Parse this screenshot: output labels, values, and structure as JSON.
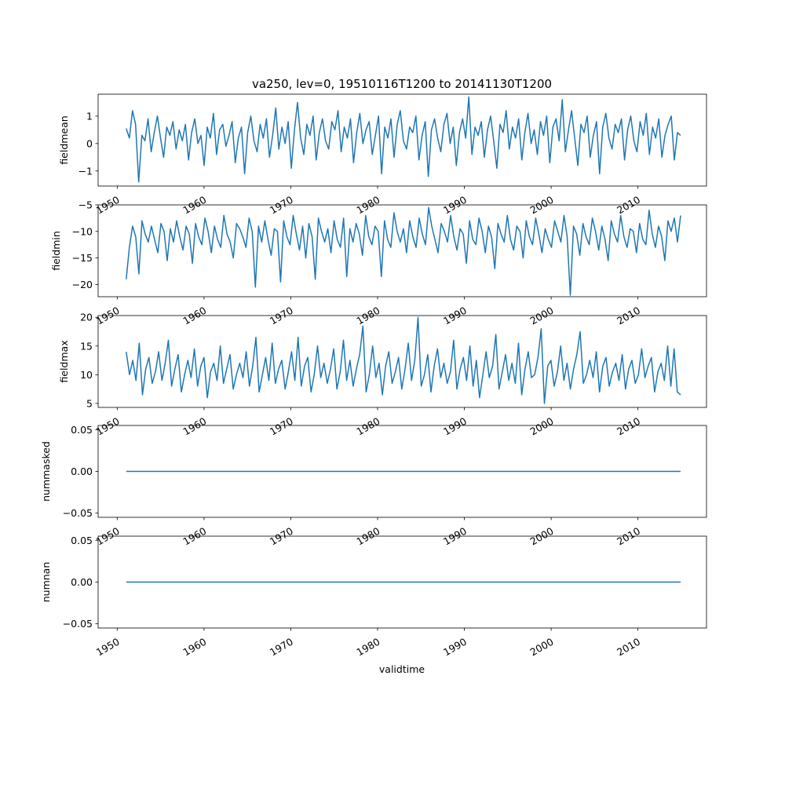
{
  "figure": {
    "title": "va250, lev=0, 19510116T1200 to 20141130T1200",
    "xlabel": "validtime"
  },
  "colors": {
    "line": "#1f77b4",
    "axes": "#000000",
    "background": "#ffffff"
  },
  "chart_data": [
    {
      "type": "line",
      "ylabel": "fieldmean",
      "x_range": [
        "1951-01-16",
        "2014-11-30"
      ],
      "xlim": [
        1947.8,
        2017.9
      ],
      "ylim": [
        -1.55,
        1.8
      ],
      "yticks": [
        -1,
        0,
        1
      ],
      "ytick_labels": [
        "−1",
        "0",
        "1"
      ],
      "xticks": [
        1950,
        1960,
        1970,
        1980,
        1990,
        2000,
        2010
      ],
      "xtick_labels": [
        "1950",
        "1960",
        "1970",
        "1980",
        "1990",
        "2000",
        "2010"
      ],
      "x_step_years": 0.08333333,
      "values": [
        0.55,
        0.2,
        1.2,
        0.7,
        -1.4,
        0.3,
        0.1,
        0.9,
        -0.3,
        0.4,
        1.0,
        0.2,
        -0.5,
        0.6,
        0.3,
        0.8,
        -0.2,
        0.5,
        0.1,
        0.7,
        -0.6,
        0.4,
        0.9,
        0.0,
        0.3,
        -0.8,
        0.6,
        0.2,
        1.1,
        -0.4,
        0.5,
        0.7,
        -0.1,
        0.3,
        0.8,
        -0.7,
        0.2,
        0.6,
        -1.1,
        0.4,
        1.0,
        0.1,
        -0.3,
        0.7,
        0.2,
        0.9,
        -0.5,
        0.3,
        1.3,
        -0.2,
        0.6,
        0.0,
        0.8,
        -0.9,
        0.5,
        1.5,
        0.2,
        -0.4,
        0.7,
        0.3,
        1.0,
        -0.6,
        0.4,
        0.9,
        0.1,
        -0.2,
        0.8,
        0.5,
        1.2,
        -0.3,
        0.6,
        0.2,
        0.9,
        -0.7,
        0.4,
        1.1,
        0.0,
        0.5,
        0.8,
        -0.4,
        0.3,
        1.0,
        -1.1,
        0.6,
        0.2,
        0.9,
        -0.5,
        0.7,
        1.2,
        0.1,
        -0.2,
        0.6,
        0.4,
        1.0,
        -0.6,
        0.3,
        0.8,
        -1.2,
        0.5,
        0.9,
        0.2,
        -0.3,
        0.7,
        1.1,
        0.0,
        0.6,
        -0.8,
        0.4,
        0.9,
        0.2,
        1.7,
        -0.4,
        0.6,
        0.3,
        0.8,
        -0.5,
        0.5,
        1.0,
        0.1,
        -0.9,
        0.7,
        0.4,
        1.2,
        -0.2,
        0.6,
        0.2,
        0.9,
        -0.6,
        0.4,
        1.1,
        0.0,
        0.5,
        -0.4,
        0.8,
        0.3,
        1.0,
        -0.7,
        0.6,
        0.9,
        0.1,
        1.6,
        -0.3,
        0.5,
        1.2,
        0.2,
        -0.8,
        0.7,
        0.4,
        1.0,
        -0.5,
        0.3,
        0.8,
        -1.1,
        0.6,
        1.1,
        0.2,
        -0.2,
        0.7,
        0.4,
        0.9,
        -0.6,
        0.5,
        1.0,
        0.1,
        -0.3,
        0.8,
        0.3,
        1.1,
        -0.4,
        0.6,
        0.2,
        0.9,
        -0.5,
        0.3,
        0.7,
        1.0,
        -0.6,
        0.4,
        0.3
      ]
    },
    {
      "type": "line",
      "ylabel": "fieldmin",
      "x_range": [
        "1951-01-16",
        "2014-11-30"
      ],
      "xlim": [
        1947.8,
        2017.9
      ],
      "ylim": [
        -22.3,
        -5.0
      ],
      "yticks": [
        -20,
        -15,
        -10,
        -5
      ],
      "ytick_labels": [
        "−20",
        "−15",
        "−10",
        "−5"
      ],
      "xticks": [
        1950,
        1960,
        1970,
        1980,
        1990,
        2000,
        2010
      ],
      "xtick_labels": [
        "1950",
        "1960",
        "1970",
        "1980",
        "1990",
        "2000",
        "2010"
      ],
      "x_step_years": 0.08333333,
      "values": [
        -19.0,
        -13.0,
        -9.0,
        -11.0,
        -18.0,
        -8.0,
        -10.5,
        -12.0,
        -9.0,
        -11.5,
        -14.0,
        -8.5,
        -10.0,
        -15.5,
        -9.5,
        -12.0,
        -8.0,
        -11.0,
        -13.5,
        -9.0,
        -10.5,
        -16.0,
        -8.5,
        -11.0,
        -12.5,
        -7.5,
        -10.0,
        -14.0,
        -9.0,
        -11.5,
        -13.0,
        -7.0,
        -10.5,
        -12.0,
        -15.0,
        -8.5,
        -9.5,
        -11.0,
        -13.0,
        -7.5,
        -10.0,
        -20.5,
        -9.0,
        -12.0,
        -8.0,
        -11.5,
        -14.5,
        -9.5,
        -10.0,
        -19.5,
        -8.0,
        -11.0,
        -12.5,
        -7.0,
        -10.5,
        -13.5,
        -9.0,
        -15.0,
        -8.5,
        -11.0,
        -19.0,
        -7.5,
        -10.0,
        -12.0,
        -9.5,
        -14.0,
        -8.0,
        -11.5,
        -13.0,
        -7.5,
        -18.5,
        -9.5,
        -12.0,
        -8.5,
        -10.5,
        -14.5,
        -7.0,
        -11.0,
        -12.5,
        -9.0,
        -10.0,
        -18.5,
        -8.0,
        -11.5,
        -13.0,
        -6.5,
        -10.0,
        -12.0,
        -9.5,
        -14.0,
        -8.0,
        -11.0,
        -13.0,
        -7.5,
        -10.5,
        -12.5,
        -5.5,
        -9.0,
        -11.5,
        -14.0,
        -8.5,
        -10.0,
        -12.0,
        -7.0,
        -11.0,
        -13.5,
        -9.5,
        -10.5,
        -16.0,
        -8.0,
        -11.5,
        -12.5,
        -7.5,
        -10.0,
        -14.0,
        -9.0,
        -11.0,
        -17.0,
        -8.5,
        -10.5,
        -12.0,
        -7.0,
        -11.5,
        -13.5,
        -9.0,
        -10.0,
        -15.0,
        -8.0,
        -11.0,
        -12.5,
        -7.5,
        -10.5,
        -14.0,
        -9.5,
        -11.5,
        -13.0,
        -8.0,
        -10.0,
        -12.0,
        -7.0,
        -11.0,
        -22.0,
        -9.0,
        -10.5,
        -14.5,
        -8.5,
        -11.0,
        -12.5,
        -7.5,
        -10.0,
        -13.5,
        -9.0,
        -11.5,
        -15.5,
        -8.0,
        -10.5,
        -12.0,
        -7.0,
        -11.0,
        -13.0,
        -9.5,
        -10.0,
        -14.0,
        -8.5,
        -11.5,
        -12.5,
        -6.0,
        -10.5,
        -13.0,
        -9.0,
        -11.0,
        -15.5,
        -8.0,
        -10.0,
        -7.5,
        -12.0,
        -7.0
      ]
    },
    {
      "type": "line",
      "ylabel": "fieldmax",
      "x_range": [
        "1951-01-16",
        "2014-11-30"
      ],
      "xlim": [
        1947.8,
        2017.9
      ],
      "ylim": [
        4.3,
        20.3
      ],
      "yticks": [
        5,
        10,
        15,
        20
      ],
      "ytick_labels": [
        "5",
        "10",
        "15",
        "20"
      ],
      "xticks": [
        1950,
        1960,
        1970,
        1980,
        1990,
        2000,
        2010
      ],
      "xtick_labels": [
        "1950",
        "1960",
        "1970",
        "1980",
        "1990",
        "2000",
        "2010"
      ],
      "x_step_years": 0.08333333,
      "values": [
        14.0,
        10.0,
        12.5,
        9.0,
        15.5,
        6.5,
        11.0,
        13.0,
        8.5,
        10.5,
        14.0,
        9.0,
        12.0,
        16.0,
        8.0,
        11.0,
        13.5,
        7.0,
        10.0,
        12.5,
        9.5,
        14.5,
        8.0,
        11.5,
        13.0,
        6.0,
        10.5,
        12.0,
        9.0,
        15.0,
        8.5,
        11.0,
        13.5,
        7.5,
        10.0,
        12.0,
        9.5,
        14.0,
        8.0,
        11.5,
        16.5,
        7.0,
        10.0,
        13.0,
        9.0,
        15.5,
        8.5,
        11.0,
        12.5,
        7.5,
        10.5,
        14.0,
        9.0,
        16.5,
        8.0,
        11.5,
        13.0,
        7.0,
        10.0,
        15.0,
        9.5,
        12.0,
        8.5,
        11.0,
        14.5,
        7.5,
        10.5,
        16.0,
        9.0,
        12.5,
        8.0,
        11.0,
        13.5,
        18.5,
        7.0,
        10.0,
        15.0,
        9.5,
        12.0,
        6.5,
        11.5,
        14.0,
        8.5,
        10.5,
        13.0,
        7.5,
        11.0,
        15.5,
        9.0,
        12.5,
        20.0,
        8.0,
        10.0,
        13.5,
        7.0,
        11.5,
        14.5,
        9.5,
        12.0,
        8.5,
        10.5,
        16.0,
        7.5,
        11.0,
        13.0,
        9.0,
        15.0,
        8.0,
        12.5,
        6.0,
        10.0,
        14.0,
        9.5,
        11.5,
        17.0,
        7.5,
        10.5,
        13.5,
        9.0,
        12.0,
        8.5,
        15.5,
        6.5,
        11.0,
        14.0,
        9.5,
        10.0,
        13.0,
        18.0,
        5.0,
        11.5,
        12.5,
        8.0,
        10.5,
        15.0,
        9.0,
        12.0,
        7.5,
        11.0,
        13.5,
        17.5,
        8.5,
        10.0,
        12.5,
        9.5,
        14.0,
        7.0,
        11.5,
        13.0,
        8.0,
        10.5,
        12.0,
        9.0,
        13.5,
        7.5,
        11.0,
        12.5,
        8.5,
        10.0,
        14.5,
        9.5,
        11.5,
        13.0,
        7.0,
        10.5,
        12.0,
        9.0,
        15.0,
        8.0,
        14.5,
        7.0,
        6.5
      ]
    },
    {
      "type": "line",
      "ylabel": "nummasked",
      "x_range": [
        "1951-01-16",
        "2014-11-30"
      ],
      "xlim": [
        1947.8,
        2017.9
      ],
      "ylim": [
        -0.055,
        0.055
      ],
      "yticks": [
        -0.05,
        0.0,
        0.05
      ],
      "ytick_labels": [
        "−0.05",
        "0.00",
        "0.05"
      ],
      "xticks": [
        1950,
        1960,
        1970,
        1980,
        1990,
        2000,
        2010
      ],
      "xtick_labels": [
        "1950",
        "1960",
        "1970",
        "1980",
        "1990",
        "2000",
        "2010"
      ],
      "x_step_years": 63.875,
      "values": [
        0,
        0
      ]
    },
    {
      "type": "line",
      "ylabel": "numnan",
      "x_range": [
        "1951-01-16",
        "2014-11-30"
      ],
      "xlim": [
        1947.8,
        2017.9
      ],
      "ylim": [
        -0.055,
        0.055
      ],
      "yticks": [
        -0.05,
        0.0,
        0.05
      ],
      "ytick_labels": [
        "−0.05",
        "0.00",
        "0.05"
      ],
      "xticks": [
        1950,
        1960,
        1970,
        1980,
        1990,
        2000,
        2010
      ],
      "xtick_labels": [
        "1950",
        "1960",
        "1970",
        "1980",
        "1990",
        "2000",
        "2010"
      ],
      "x_step_years": 63.875,
      "values": [
        0,
        0
      ]
    }
  ]
}
